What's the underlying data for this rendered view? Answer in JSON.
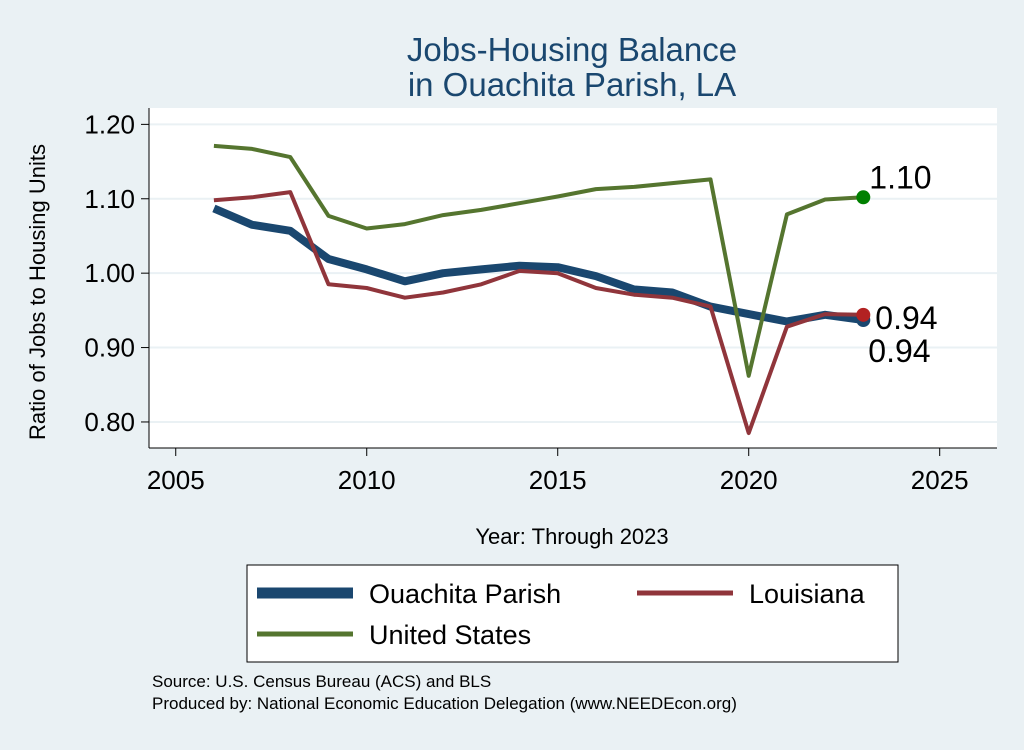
{
  "chart_data": {
    "type": "line",
    "title_lines": [
      "Jobs-Housing Balance",
      "in Ouachita Parish, LA"
    ],
    "xlabel": "Year: Through 2023",
    "ylabel": "Ratio of Jobs to Housing Units",
    "xlim": [
      2004.3,
      2026.5
    ],
    "ylim": [
      0.765,
      1.222
    ],
    "xticks": [
      2005,
      2010,
      2015,
      2020,
      2025
    ],
    "yticks": [
      0.8,
      0.9,
      1.0,
      1.1,
      1.2
    ],
    "ytick_labels": [
      "0.80",
      "0.90",
      "1.00",
      "1.10",
      "1.20"
    ],
    "grid": true,
    "legend_position": "bottom",
    "x": [
      2006,
      2007,
      2008,
      2009,
      2010,
      2011,
      2012,
      2013,
      2014,
      2015,
      2016,
      2017,
      2018,
      2019,
      2020,
      2021,
      2022,
      2023
    ],
    "series": [
      {
        "name": "Ouachita Parish",
        "color": "#1a476f",
        "values": [
          1.087,
          1.065,
          1.057,
          1.019,
          1.005,
          0.989,
          1.0,
          1.005,
          1.01,
          1.008,
          0.996,
          0.978,
          0.974,
          0.955,
          0.945,
          0.935,
          0.944,
          0.937
        ],
        "end_label": "0.94"
      },
      {
        "name": "Louisiana",
        "color": "#90353b",
        "values": [
          1.098,
          1.102,
          1.109,
          0.985,
          0.98,
          0.967,
          0.974,
          0.985,
          1.003,
          1.0,
          0.98,
          0.971,
          0.967,
          0.955,
          0.785,
          0.928,
          0.945,
          0.944
        ],
        "end_label": "0.94"
      },
      {
        "name": "United States",
        "color": "#55752f",
        "values": [
          1.171,
          1.167,
          1.156,
          1.077,
          1.06,
          1.066,
          1.078,
          1.085,
          1.094,
          1.103,
          1.113,
          1.116,
          1.121,
          1.126,
          0.862,
          1.079,
          1.099,
          1.102
        ],
        "end_label": "1.10"
      }
    ],
    "end_marker_colors": {
      "Louisiana": "#b22222",
      "United States": "#008000"
    }
  },
  "legend": {
    "items": [
      "Ouachita Parish",
      "Louisiana",
      "United States"
    ]
  },
  "notes": {
    "source": "Source: U.S. Census Bureau (ACS) and BLS",
    "produced": "Produced by: National Economic Education Delegation (www.NEEDEcon.org)"
  }
}
